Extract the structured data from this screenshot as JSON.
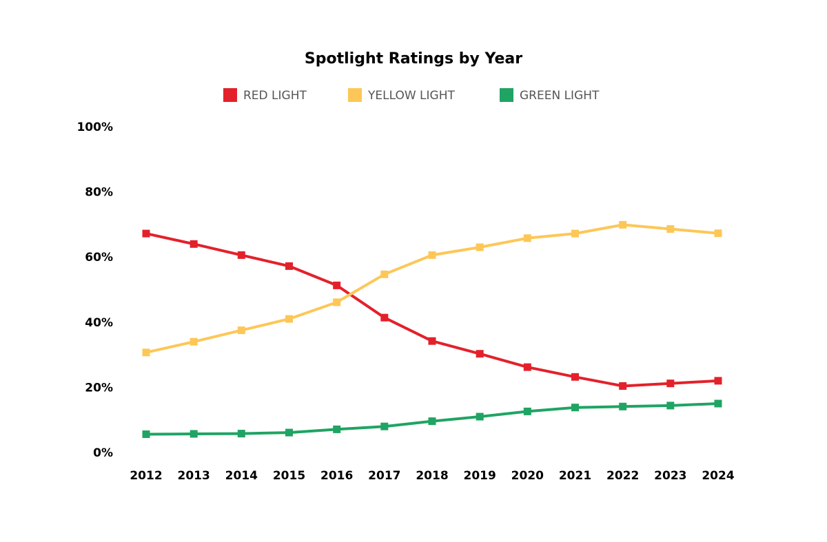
{
  "chart_data": {
    "type": "line",
    "title": "Spotlight Ratings by Year",
    "xlabel": "",
    "ylabel": "",
    "categories": [
      "2012",
      "2013",
      "2014",
      "2015",
      "2016",
      "2017",
      "2018",
      "2019",
      "2020",
      "2021",
      "2022",
      "2023",
      "2024"
    ],
    "ylim": [
      0,
      100
    ],
    "yticks": [
      0,
      20,
      40,
      60,
      80,
      100
    ],
    "ytick_labels": [
      "0%",
      "20%",
      "40%",
      "60%",
      "80%",
      "100%"
    ],
    "grid": false,
    "legend_position": "top-center",
    "series": [
      {
        "name": "RED LIGHT",
        "color": "#e3212b",
        "values": [
          67.2,
          64.0,
          60.6,
          57.2,
          51.3,
          41.4,
          34.2,
          30.3,
          26.2,
          23.2,
          20.4,
          21.2,
          22.0
        ]
      },
      {
        "name": "YELLOW LIGHT",
        "color": "#fdc757",
        "values": [
          30.7,
          34.0,
          37.5,
          41.0,
          46.1,
          54.7,
          60.6,
          63.0,
          65.8,
          67.2,
          69.9,
          68.6,
          67.3
        ]
      },
      {
        "name": "GREEN LIGHT",
        "color": "#1fa463",
        "values": [
          5.6,
          5.7,
          5.8,
          6.1,
          7.1,
          8.0,
          9.6,
          11.0,
          12.6,
          13.8,
          14.1,
          14.4,
          15.0
        ]
      }
    ]
  }
}
